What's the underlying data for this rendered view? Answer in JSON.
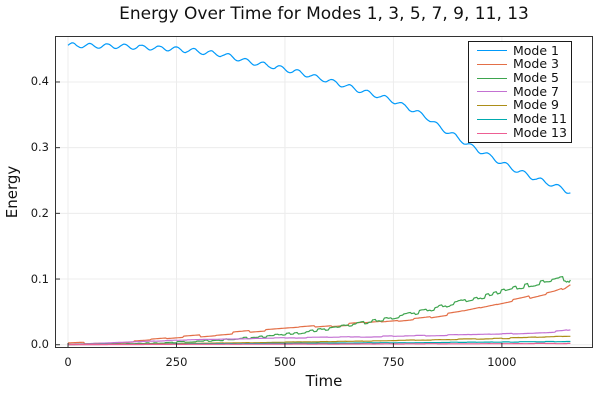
{
  "chart_data": {
    "type": "line",
    "title": "Energy Over Time for Modes 1, 3, 5, 7, 9, 11, 13",
    "xlabel": "Time",
    "ylabel": "Energy",
    "xlim": [
      -30,
      1210
    ],
    "ylim": [
      -0.005,
      0.47
    ],
    "x_ticks": {
      "values": [
        0,
        250,
        500,
        750,
        1000
      ],
      "labels": [
        "0",
        "250",
        "500",
        "750",
        "1000"
      ]
    },
    "y_ticks": {
      "values": [
        0.0,
        0.1,
        0.2,
        0.3,
        0.4
      ],
      "labels": [
        "0.0",
        "0.1",
        "0.2",
        "0.3",
        "0.4"
      ]
    },
    "grid": true,
    "legend_position": "top-right",
    "background_color": "#ffffff",
    "frame_color": "#333333",
    "grid_color": "#ececec",
    "t_range": [
      0,
      1160
    ],
    "series": [
      {
        "name": "Mode 1",
        "color": "#009AFA",
        "oscillation": {
          "amplitude": 0.0035,
          "period": 40
        },
        "noise": {
          "amplitude": 0.0004,
          "period": 8,
          "ramp": false
        },
        "keypoints": [
          [
            0,
            0.456
          ],
          [
            60,
            0.455
          ],
          [
            120,
            0.4545
          ],
          [
            180,
            0.4525
          ],
          [
            240,
            0.4505
          ],
          [
            300,
            0.4465
          ],
          [
            360,
            0.4415
          ],
          [
            420,
            0.4305
          ],
          [
            470,
            0.424
          ],
          [
            520,
            0.4165
          ],
          [
            570,
            0.4075
          ],
          [
            620,
            0.3985
          ],
          [
            660,
            0.39
          ],
          [
            700,
            0.3815
          ],
          [
            740,
            0.374
          ],
          [
            790,
            0.359
          ],
          [
            830,
            0.345
          ],
          [
            860,
            0.3295
          ],
          [
            900,
            0.3145
          ],
          [
            930,
            0.3015
          ],
          [
            960,
            0.2915
          ],
          [
            1000,
            0.2765
          ],
          [
            1040,
            0.2635
          ],
          [
            1080,
            0.2525
          ],
          [
            1120,
            0.2425
          ],
          [
            1160,
            0.2315
          ]
        ]
      },
      {
        "name": "Mode 3",
        "color": "#E36F47",
        "oscillation": null,
        "noise": {
          "amplitude": 0.0022,
          "period": 38,
          "ramp": false
        },
        "keypoints": [
          [
            0,
            0.001
          ],
          [
            60,
            0.0025
          ],
          [
            120,
            0.0045
          ],
          [
            180,
            0.007
          ],
          [
            240,
            0.01
          ],
          [
            300,
            0.013
          ],
          [
            360,
            0.016
          ],
          [
            420,
            0.0195
          ],
          [
            480,
            0.0225
          ],
          [
            540,
            0.0255
          ],
          [
            600,
            0.0285
          ],
          [
            660,
            0.0315
          ],
          [
            720,
            0.035
          ],
          [
            780,
            0.0385
          ],
          [
            840,
            0.043
          ],
          [
            900,
            0.049
          ],
          [
            950,
            0.056
          ],
          [
            1000,
            0.063
          ],
          [
            1050,
            0.07
          ],
          [
            1090,
            0.0765
          ],
          [
            1120,
            0.081
          ],
          [
            1145,
            0.087
          ],
          [
            1160,
            0.094
          ]
        ]
      },
      {
        "name": "Mode 5",
        "color": "#3DA44E",
        "oscillation": null,
        "noise": {
          "amplitude": 0.0042,
          "period": 9,
          "ramp": true
        },
        "keypoints": [
          [
            0,
            0.0005
          ],
          [
            100,
            0.0012
          ],
          [
            200,
            0.0025
          ],
          [
            280,
            0.0045
          ],
          [
            360,
            0.0075
          ],
          [
            440,
            0.0115
          ],
          [
            500,
            0.0155
          ],
          [
            560,
            0.0205
          ],
          [
            620,
            0.0265
          ],
          [
            680,
            0.033
          ],
          [
            740,
            0.04
          ],
          [
            800,
            0.048
          ],
          [
            860,
            0.0575
          ],
          [
            920,
            0.0675
          ],
          [
            980,
            0.0775
          ],
          [
            1030,
            0.086
          ],
          [
            1070,
            0.0925
          ],
          [
            1100,
            0.097
          ],
          [
            1130,
            0.1
          ],
          [
            1145,
            0.1015
          ],
          [
            1155,
            0.096
          ],
          [
            1160,
            0.102
          ]
        ]
      },
      {
        "name": "Mode 7",
        "color": "#C371D2",
        "oscillation": null,
        "noise": {
          "amplitude": 0.0012,
          "period": 25,
          "ramp": true
        },
        "keypoints": [
          [
            0,
            0.0005
          ],
          [
            80,
            0.0025
          ],
          [
            160,
            0.0045
          ],
          [
            240,
            0.0065
          ],
          [
            320,
            0.008
          ],
          [
            420,
            0.0095
          ],
          [
            520,
            0.0105
          ],
          [
            620,
            0.0115
          ],
          [
            720,
            0.0125
          ],
          [
            820,
            0.0135
          ],
          [
            920,
            0.015
          ],
          [
            1020,
            0.0165
          ],
          [
            1100,
            0.0185
          ],
          [
            1140,
            0.0205
          ],
          [
            1160,
            0.0225
          ]
        ]
      },
      {
        "name": "Mode 9",
        "color": "#AC8E18",
        "oscillation": null,
        "noise": {
          "amplitude": 0.0008,
          "period": 20,
          "ramp": true
        },
        "keypoints": [
          [
            0,
            0.0003
          ],
          [
            150,
            0.001
          ],
          [
            300,
            0.002
          ],
          [
            450,
            0.0033
          ],
          [
            600,
            0.0048
          ],
          [
            750,
            0.0063
          ],
          [
            850,
            0.0075
          ],
          [
            950,
            0.009
          ],
          [
            1050,
            0.0105
          ],
          [
            1160,
            0.0125
          ]
        ]
      },
      {
        "name": "Mode 11",
        "color": "#00AAAE",
        "oscillation": null,
        "noise": {
          "amplitude": 0.0004,
          "period": 20,
          "ramp": true
        },
        "keypoints": [
          [
            0,
            0.0002
          ],
          [
            200,
            0.0008
          ],
          [
            400,
            0.0016
          ],
          [
            600,
            0.0025
          ],
          [
            800,
            0.0032
          ],
          [
            1000,
            0.004
          ],
          [
            1160,
            0.0048
          ]
        ]
      },
      {
        "name": "Mode 13",
        "color": "#ED5E93",
        "oscillation": null,
        "noise": {
          "amplitude": 0.0003,
          "period": 25,
          "ramp": true
        },
        "keypoints": [
          [
            0,
            0.0001
          ],
          [
            300,
            0.0006
          ],
          [
            600,
            0.001
          ],
          [
            900,
            0.0014
          ],
          [
            1160,
            0.0019
          ]
        ]
      }
    ]
  }
}
